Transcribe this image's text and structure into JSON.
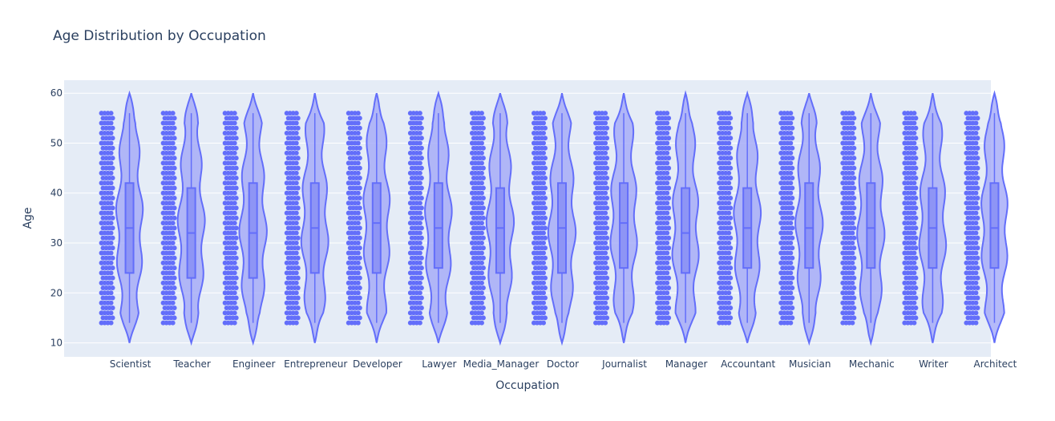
{
  "chart_data": {
    "type": "violin",
    "title": "Age Distribution by Occupation",
    "xlabel": "Occupation",
    "ylabel": "Age",
    "ylim": [
      7.2,
      62.6
    ],
    "yticks": [
      10,
      20,
      30,
      40,
      50,
      60
    ],
    "grid": true,
    "legend": "none",
    "points": "all",
    "colors": {
      "plot_bg": "#E5ECF6",
      "violin_fill": "#A3A9F7",
      "violin_line": "#636EFA",
      "points": "#636EFA",
      "text": "#2a3f5f"
    },
    "categories": [
      "Scientist",
      "Teacher",
      "Engineer",
      "Entrepreneur",
      "Developer",
      "Lawyer",
      "Media_Manager",
      "Doctor",
      "Journalist",
      "Manager",
      "Accountant",
      "Musician",
      "Mechanic",
      "Writer",
      "Architect"
    ],
    "series": [
      {
        "category": "Scientist",
        "min": 14,
        "q1": 24,
        "median": 33,
        "q3": 42,
        "max": 56
      },
      {
        "category": "Teacher",
        "min": 14,
        "q1": 23,
        "median": 32,
        "q3": 41,
        "max": 56
      },
      {
        "category": "Engineer",
        "min": 14,
        "q1": 23,
        "median": 32,
        "q3": 42,
        "max": 56
      },
      {
        "category": "Entrepreneur",
        "min": 14,
        "q1": 24,
        "median": 33,
        "q3": 42,
        "max": 56
      },
      {
        "category": "Developer",
        "min": 14,
        "q1": 24,
        "median": 34,
        "q3": 42,
        "max": 56
      },
      {
        "category": "Lawyer",
        "min": 14,
        "q1": 25,
        "median": 33,
        "q3": 42,
        "max": 56
      },
      {
        "category": "Media_Manager",
        "min": 14,
        "q1": 24,
        "median": 33,
        "q3": 41,
        "max": 56
      },
      {
        "category": "Doctor",
        "min": 14,
        "q1": 24,
        "median": 33,
        "q3": 42,
        "max": 56
      },
      {
        "category": "Journalist",
        "min": 14,
        "q1": 25,
        "median": 34,
        "q3": 42,
        "max": 56
      },
      {
        "category": "Manager",
        "min": 14,
        "q1": 24,
        "median": 32,
        "q3": 41,
        "max": 56
      },
      {
        "category": "Accountant",
        "min": 14,
        "q1": 25,
        "median": 33,
        "q3": 41,
        "max": 56
      },
      {
        "category": "Musician",
        "min": 14,
        "q1": 25,
        "median": 33,
        "q3": 42,
        "max": 56
      },
      {
        "category": "Mechanic",
        "min": 14,
        "q1": 25,
        "median": 33,
        "q3": 42,
        "max": 56
      },
      {
        "category": "Writer",
        "min": 14,
        "q1": 25,
        "median": 33,
        "q3": 41,
        "max": 56
      },
      {
        "category": "Architect",
        "min": 14,
        "q1": 25,
        "median": 33,
        "q3": 42,
        "max": 56
      }
    ]
  }
}
